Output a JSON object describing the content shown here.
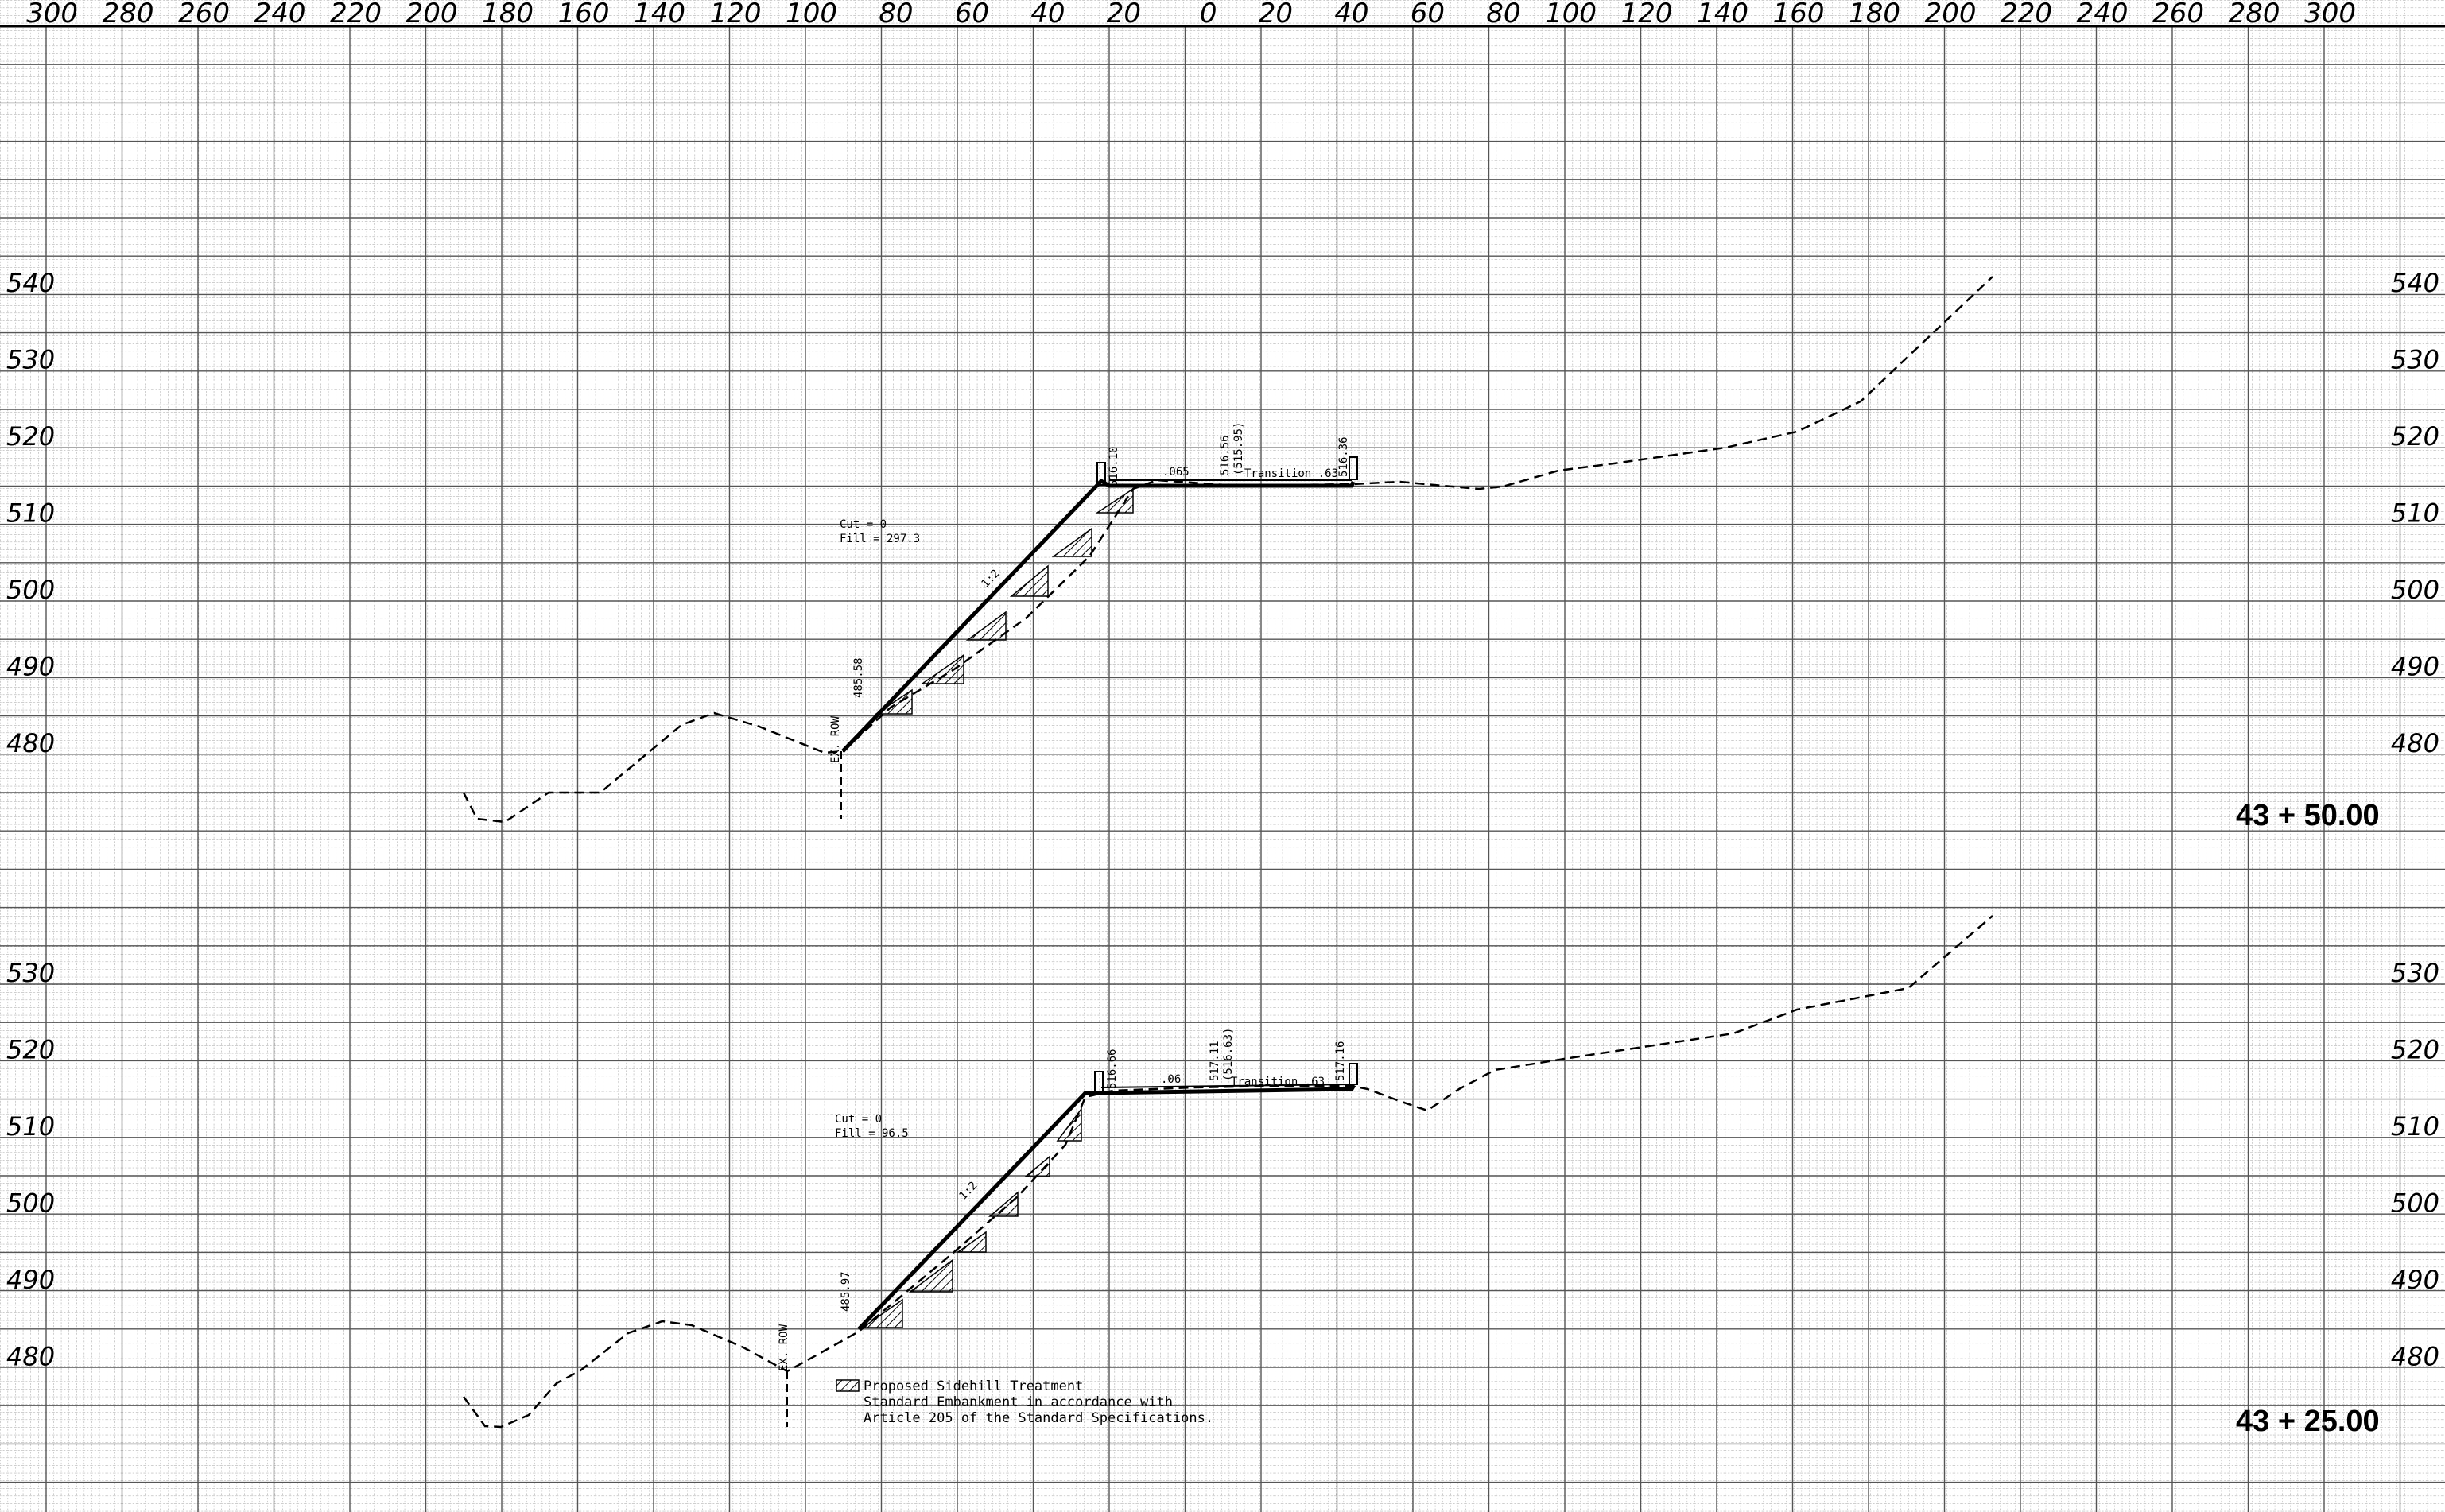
{
  "x_ticks": [
    "300",
    "280",
    "260",
    "240",
    "220",
    "200",
    "180",
    "160",
    "140",
    "120",
    "100",
    "80",
    "60",
    "40",
    "20",
    "0",
    "20",
    "40",
    "60",
    "80",
    "100",
    "120",
    "140",
    "160",
    "180",
    "200",
    "220",
    "240",
    "260",
    "280",
    "300"
  ],
  "sections": [
    {
      "station": "43 + 50.00",
      "elevations": [
        "540",
        "530",
        "520",
        "510",
        "500",
        "490",
        "480"
      ],
      "labels": {
        "cut_fill": "Cut = 0",
        "fill": "Fill = 297.3",
        "slope": "1:2",
        "shoulder_l": "516.10",
        "cl": "516.56",
        "cl_sub": "(515.95)",
        "shoulder_r": "516.36",
        "toe": "485.58",
        "row": "EX. ROW",
        "cross_l": ".065",
        "transition": "Transition .63"
      }
    },
    {
      "station": "43 + 25.00",
      "elevations": [
        "530",
        "520",
        "510",
        "500",
        "490",
        "480"
      ],
      "labels": {
        "cut_fill": "Cut = 0",
        "fill": "Fill = 96.5",
        "slope": "1:2",
        "shoulder_l": "516.66",
        "cl": "517.11",
        "cl_sub": "(516.63)",
        "shoulder_r": "517.16",
        "toe": "485.97",
        "row": "EX. ROW",
        "cross_l": ".06",
        "transition": "Transition .63"
      }
    }
  ],
  "legend": {
    "title": "Proposed Sidehill Treatment",
    "line1": "Standard Embankment in accordance with",
    "line2": "Article 205 of the Standard Specifications."
  }
}
